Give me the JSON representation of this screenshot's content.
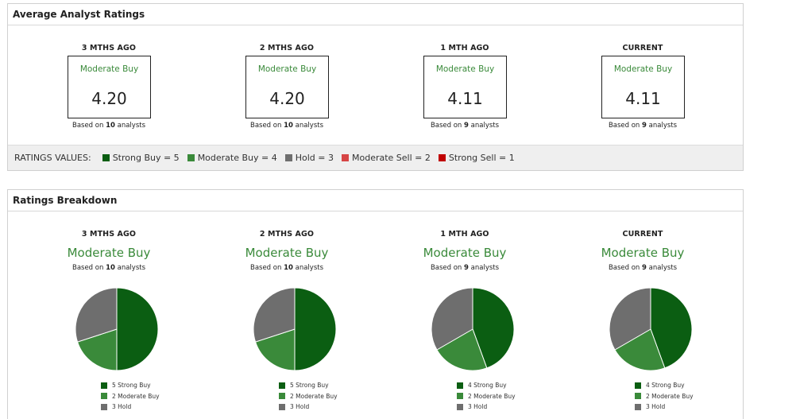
{
  "avg_panel": {
    "title": "Average Analyst Ratings",
    "periods": [
      {
        "period": "3 MTHS AGO",
        "rating": "Moderate Buy",
        "score": "4.20",
        "based_prefix": "Based on",
        "analysts": "10",
        "based_suffix": "analysts"
      },
      {
        "period": "2 MTHS AGO",
        "rating": "Moderate Buy",
        "score": "4.20",
        "based_prefix": "Based on",
        "analysts": "10",
        "based_suffix": "analysts"
      },
      {
        "period": "1 MTH AGO",
        "rating": "Moderate Buy",
        "score": "4.11",
        "based_prefix": "Based on",
        "analysts": "9",
        "based_suffix": "analysts"
      },
      {
        "period": "CURRENT",
        "rating": "Moderate Buy",
        "score": "4.11",
        "based_prefix": "Based on",
        "analysts": "9",
        "based_suffix": "analysts"
      }
    ],
    "legend_label": "RATINGS VALUES:",
    "legend": [
      {
        "label": "Strong Buy = 5",
        "color": "#0b5e12"
      },
      {
        "label": "Moderate Buy = 4",
        "color": "#3a8a3a"
      },
      {
        "label": "Hold = 3",
        "color": "#6e6e6e"
      },
      {
        "label": "Moderate Sell = 2",
        "color": "#d64545"
      },
      {
        "label": "Strong Sell = 1",
        "color": "#c00000"
      }
    ]
  },
  "breakdown_panel": {
    "title": "Ratings Breakdown"
  },
  "colors": {
    "strong_buy": "#0b5e12",
    "moderate_buy": "#3a8a3a",
    "hold": "#6e6e6e"
  },
  "chart_data": [
    {
      "type": "pie",
      "title": "3 MTHS AGO",
      "subtitle": "Moderate Buy",
      "based_prefix": "Based on",
      "analysts": "10",
      "based_suffix": "analysts",
      "slices": [
        {
          "label": "Strong Buy",
          "value": 5
        },
        {
          "label": "Moderate Buy",
          "value": 2
        },
        {
          "label": "Hold",
          "value": 3
        }
      ],
      "legend": [
        "5 Strong Buy",
        "2 Moderate Buy",
        "3 Hold"
      ]
    },
    {
      "type": "pie",
      "title": "2 MTHS AGO",
      "subtitle": "Moderate Buy",
      "based_prefix": "Based on",
      "analysts": "10",
      "based_suffix": "analysts",
      "slices": [
        {
          "label": "Strong Buy",
          "value": 5
        },
        {
          "label": "Moderate Buy",
          "value": 2
        },
        {
          "label": "Hold",
          "value": 3
        }
      ],
      "legend": [
        "5 Strong Buy",
        "2 Moderate Buy",
        "3 Hold"
      ]
    },
    {
      "type": "pie",
      "title": "1 MTH AGO",
      "subtitle": "Moderate Buy",
      "based_prefix": "Based on",
      "analysts": "9",
      "based_suffix": "analysts",
      "slices": [
        {
          "label": "Strong Buy",
          "value": 4
        },
        {
          "label": "Moderate Buy",
          "value": 2
        },
        {
          "label": "Hold",
          "value": 3
        }
      ],
      "legend": [
        "4 Strong Buy",
        "2 Moderate Buy",
        "3 Hold"
      ]
    },
    {
      "type": "pie",
      "title": "CURRENT",
      "subtitle": "Moderate Buy",
      "based_prefix": "Based on",
      "analysts": "9",
      "based_suffix": "analysts",
      "slices": [
        {
          "label": "Strong Buy",
          "value": 4
        },
        {
          "label": "Moderate Buy",
          "value": 2
        },
        {
          "label": "Hold",
          "value": 3
        }
      ],
      "legend": [
        "4 Strong Buy",
        "2 Moderate Buy",
        "3 Hold"
      ]
    }
  ]
}
